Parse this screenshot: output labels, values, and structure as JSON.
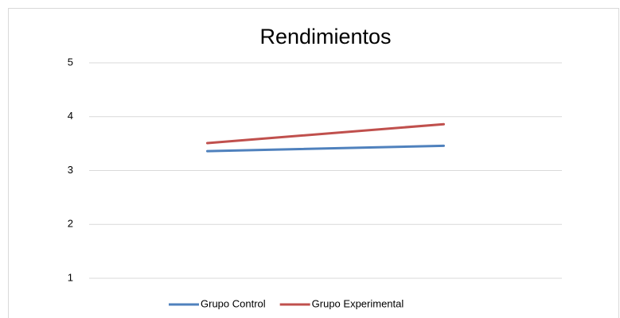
{
  "chart_data": {
    "type": "line",
    "title": "Rendimientos",
    "categories": [
      null,
      null
    ],
    "series": [
      {
        "name": "Grupo Control",
        "color": "#4f81bd",
        "values": [
          3.36,
          3.46
        ]
      },
      {
        "name": "Grupo Experimental",
        "color": "#c0504d",
        "values": [
          3.51,
          3.86
        ]
      }
    ],
    "ylim": [
      1,
      5
    ],
    "yticks": [
      1,
      2,
      3,
      4,
      5
    ],
    "grid": true,
    "legend": "bottom"
  }
}
